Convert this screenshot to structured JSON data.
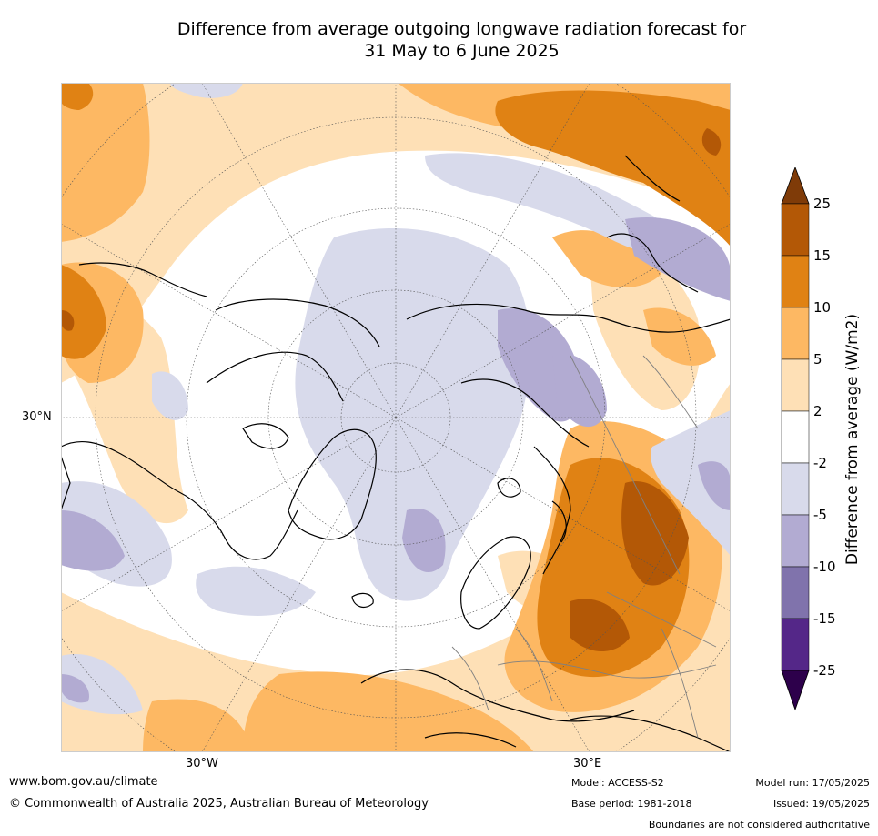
{
  "title_line1": "Difference from average outgoing longwave radiation forecast for",
  "title_line2": "31 May to 6 June 2025",
  "map": {
    "latitude_label": "30°N",
    "longitude_labels": {
      "west": "30°W",
      "east": "30°E"
    },
    "projection": "north polar stereographic"
  },
  "colorbar": {
    "title": "Difference from average (W/m2)",
    "ticks": [
      "25",
      "15",
      "10",
      "5",
      "2",
      "-2",
      "-5",
      "-10",
      "-15",
      "-25"
    ],
    "bins": [
      {
        "range": "> 25",
        "color": "#7f3b08"
      },
      {
        "range": "15 to 25",
        "color": "#b35806"
      },
      {
        "range": "10 to 15",
        "color": "#e08214"
      },
      {
        "range": "5 to 10",
        "color": "#fdb863"
      },
      {
        "range": "2 to 5",
        "color": "#fee0b6"
      },
      {
        "range": "-2 to 2",
        "color": "#ffffff"
      },
      {
        "range": "-5 to -2",
        "color": "#d8daeb"
      },
      {
        "range": "-10 to -5",
        "color": "#b2abd2"
      },
      {
        "range": "-15 to -10",
        "color": "#8073ac"
      },
      {
        "range": "-25 to -15",
        "color": "#542788"
      },
      {
        "range": "< -25",
        "color": "#2d004b"
      }
    ]
  },
  "footer": {
    "website": "www.bom.gov.au/climate",
    "copyright": "© Commonwealth of Australia 2025, Australian Bureau of Meteorology",
    "model": "Model: ACCESS-S2",
    "base_period": "Base period: 1981-2018",
    "model_run": "Model run: 17/05/2025",
    "issued": "Issued: 19/05/2025",
    "disclaimer": "Boundaries are not considered authoritative"
  }
}
